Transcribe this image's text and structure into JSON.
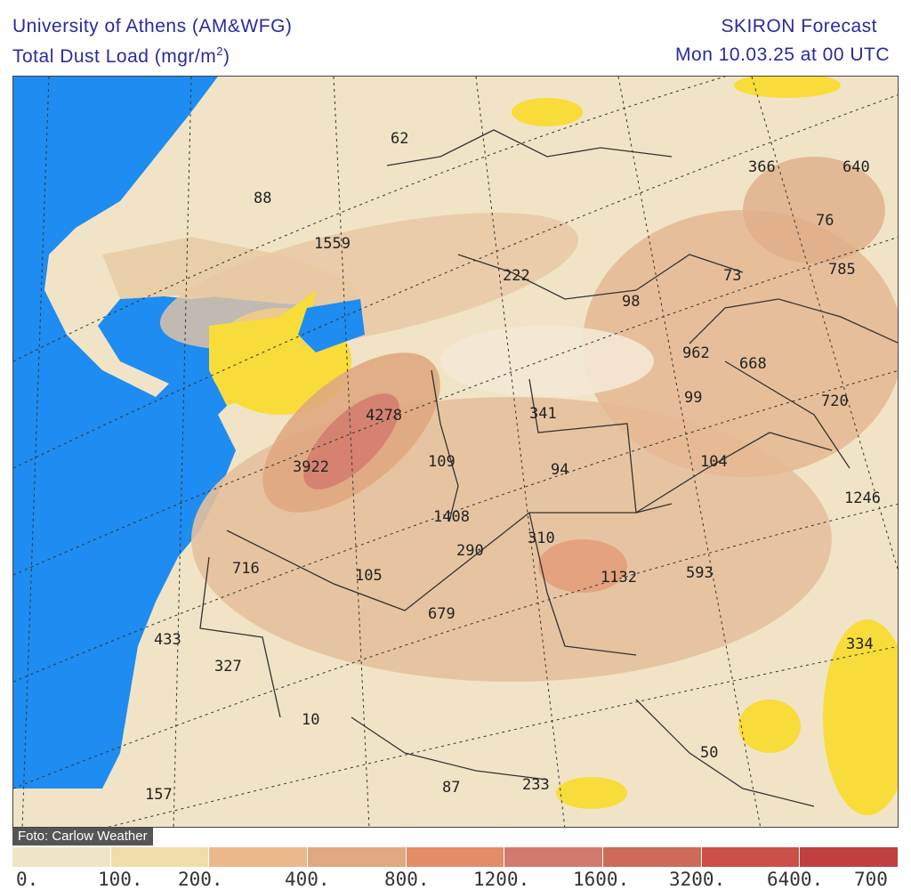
{
  "header": {
    "institution": "University of Athens (AM&WFG)",
    "variable": "Total Dust Load (mgr/m",
    "variable_sup": "2",
    "variable_close": ")",
    "model": "SKIRON Forecast",
    "valid_time": "Mon 10.03.25 at 00 UTC"
  },
  "map": {
    "colors": {
      "ocean": "#1e8cf0",
      "land": "#f1e4c6",
      "low_dust": "#f5e6b0",
      "below_zero_yellow": "#f8dc3a",
      "border": "#333333"
    },
    "labels": [
      "62",
      "366",
      "640",
      "88",
      "76",
      "1559",
      "73",
      "785",
      "222",
      "98",
      "962",
      "668",
      "4278",
      "341",
      "99",
      "720",
      "3922",
      "109",
      "94",
      "104",
      "1246",
      "1408",
      "310",
      "290",
      "716",
      "105",
      "1132",
      "593",
      "679",
      "433",
      "334",
      "327",
      "10",
      "50",
      "157",
      "87",
      "233"
    ]
  },
  "legend": {
    "colors": [
      "#efe6c8",
      "#f0dca8",
      "#eab88a",
      "#dfa880",
      "#e28c68",
      "#d27a6e",
      "#cf6a58",
      "#cc5048",
      "#c04040"
    ],
    "ticks": [
      "0.",
      "100.",
      "200.",
      "400.",
      "800.",
      "1200.",
      "1600.",
      "3200.",
      "6400.",
      "700"
    ]
  },
  "credit": "Foto: Carlow Weather"
}
